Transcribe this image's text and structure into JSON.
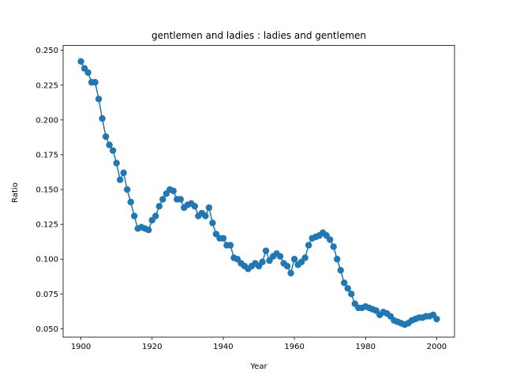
{
  "chart_data": {
    "type": "line",
    "title": "gentlemen and ladies : ladies and gentlemen",
    "xlabel": "Year",
    "ylabel": "Ratio",
    "xlim": [
      1895,
      2005
    ],
    "ylim": [
      0.044,
      0.2535
    ],
    "x_ticks": [
      1900,
      1920,
      1940,
      1960,
      1980,
      2000
    ],
    "y_ticks": [
      0.05,
      0.075,
      0.1,
      0.125,
      0.15,
      0.175,
      0.2,
      0.225,
      0.25
    ],
    "y_tick_labels": [
      "0.050",
      "0.075",
      "0.100",
      "0.125",
      "0.150",
      "0.175",
      "0.200",
      "0.225",
      "0.250"
    ],
    "grid": false,
    "color": "#1f77b4",
    "series": [
      {
        "x": [
          1900,
          1901,
          1902,
          1903,
          1904,
          1905,
          1906,
          1907,
          1908,
          1909,
          1910,
          1911,
          1912,
          1913,
          1914,
          1915,
          1916,
          1917,
          1918,
          1919,
          1920,
          1921,
          1922,
          1923,
          1924,
          1925,
          1926,
          1927,
          1928,
          1929,
          1930,
          1931,
          1932,
          1933,
          1934,
          1935,
          1936,
          1937,
          1938,
          1939,
          1940,
          1941,
          1942,
          1943,
          1944,
          1945,
          1946,
          1947,
          1948,
          1949,
          1950,
          1951,
          1952,
          1953,
          1954,
          1955,
          1956,
          1957,
          1958,
          1959,
          1960,
          1961,
          1962,
          1963,
          1964,
          1965,
          1966,
          1967,
          1968,
          1969,
          1970,
          1971,
          1972,
          1973,
          1974,
          1975,
          1976,
          1977,
          1978,
          1979,
          1980,
          1981,
          1982,
          1983,
          1984,
          1985,
          1986,
          1987,
          1988,
          1989,
          1990,
          1991,
          1992,
          1993,
          1994,
          1995,
          1996,
          1997,
          1998,
          1999,
          2000
        ],
        "values": [
          0.242,
          0.237,
          0.234,
          0.227,
          0.227,
          0.215,
          0.201,
          0.188,
          0.182,
          0.178,
          0.169,
          0.157,
          0.162,
          0.15,
          0.141,
          0.131,
          0.122,
          0.123,
          0.122,
          0.121,
          0.128,
          0.131,
          0.138,
          0.143,
          0.147,
          0.15,
          0.149,
          0.143,
          0.143,
          0.137,
          0.139,
          0.14,
          0.138,
          0.131,
          0.133,
          0.131,
          0.137,
          0.126,
          0.118,
          0.115,
          0.115,
          0.11,
          0.11,
          0.101,
          0.1,
          0.097,
          0.095,
          0.093,
          0.095,
          0.097,
          0.095,
          0.098,
          0.106,
          0.099,
          0.102,
          0.104,
          0.102,
          0.097,
          0.095,
          0.09,
          0.1,
          0.096,
          0.098,
          0.101,
          0.11,
          0.115,
          0.116,
          0.117,
          0.119,
          0.117,
          0.114,
          0.109,
          0.1,
          0.092,
          0.083,
          0.079,
          0.075,
          0.068,
          0.065,
          0.065,
          0.066,
          0.065,
          0.064,
          0.063,
          0.06,
          0.062,
          0.061,
          0.059,
          0.056,
          0.055,
          0.054,
          0.053,
          0.054,
          0.056,
          0.057,
          0.058,
          0.058,
          0.059,
          0.059,
          0.06,
          0.057
        ]
      }
    ]
  }
}
